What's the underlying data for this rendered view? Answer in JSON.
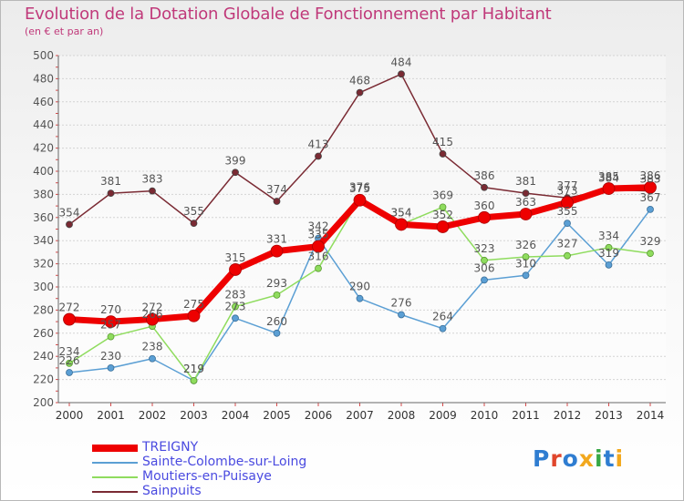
{
  "title": "Evolution de la Dotation Globale de Fonctionnement par Habitant",
  "subtitle": "(en € et par an)",
  "logo": {
    "text": "Proxiti",
    "colors": [
      "#2f7dd1",
      "#e0462c",
      "#2f7dd1",
      "#f2a81d",
      "#37a845",
      "#2f7dd1",
      "#f2a81d"
    ]
  },
  "chart_data": {
    "type": "line",
    "title": "Evolution de la Dotation Globale de Fonctionnement par Habitant",
    "subtitle": "(en € et par an)",
    "x": [
      "2000",
      "2001",
      "2002",
      "2003",
      "2004",
      "2005",
      "2006",
      "2007",
      "2008",
      "2009",
      "2010",
      "2011",
      "2012",
      "2013",
      "2014"
    ],
    "ylim": [
      200,
      500
    ],
    "yticks": [
      200,
      220,
      240,
      260,
      280,
      300,
      320,
      340,
      360,
      380,
      400,
      420,
      440,
      460,
      480,
      500
    ],
    "grid": "horizontal",
    "legend_position": "bottom-left",
    "series": [
      {
        "name": "Sainpuits",
        "color": "#7a2a33",
        "values": [
          354,
          381,
          383,
          355,
          399,
          374,
          413,
          468,
          484,
          415,
          386,
          381,
          377,
          384,
          383
        ]
      },
      {
        "name": "Sainte-Colombe-sur-Loing",
        "color": "#5b9fd4",
        "values": [
          226,
          230,
          238,
          219,
          273,
          260,
          342,
          290,
          276,
          264,
          306,
          310,
          355,
          319,
          367
        ]
      },
      {
        "name": "Moutiers-en-Puisaye",
        "color": "#8fdc5e",
        "values": [
          234,
          257,
          266,
          219,
          283,
          293,
          316,
          376,
          354,
          369,
          323,
          326,
          327,
          334,
          329
        ]
      },
      {
        "name": "TREIGNY",
        "color": "#ee0000",
        "values": [
          272,
          270,
          272,
          275,
          315,
          331,
          335,
          375,
          354,
          352,
          360,
          363,
          373,
          385,
          386
        ]
      }
    ]
  },
  "legend": [
    {
      "name": "TREIGNY",
      "color": "#ee0000",
      "thickness": 8
    },
    {
      "name": "Sainte-Colombe-sur-Loing",
      "color": "#5b9fd4",
      "thickness": 2
    },
    {
      "name": "Moutiers-en-Puisaye",
      "color": "#8fdc5e",
      "thickness": 2
    },
    {
      "name": "Sainpuits",
      "color": "#7a2a33",
      "thickness": 2
    }
  ]
}
